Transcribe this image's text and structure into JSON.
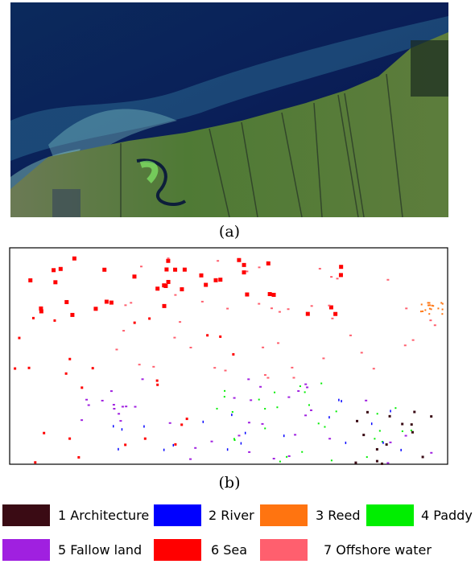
{
  "panels": [
    {
      "caption": "(a)"
    },
    {
      "caption": "(b)"
    }
  ],
  "legend": [
    {
      "label": "1 Architecture",
      "color": "#3a0b14"
    },
    {
      "label": "2 River",
      "color": "#0000ff"
    },
    {
      "label": "3 Reed",
      "color": "#ff7410"
    },
    {
      "label": "4 Paddy",
      "color": "#00ee00"
    },
    {
      "label": "5 Fallow land",
      "color": "#a020e0"
    },
    {
      "label": "6 Sea",
      "color": "#ff0000"
    },
    {
      "label": "7 Offshore water",
      "color": "#ff5f6e"
    }
  ]
}
